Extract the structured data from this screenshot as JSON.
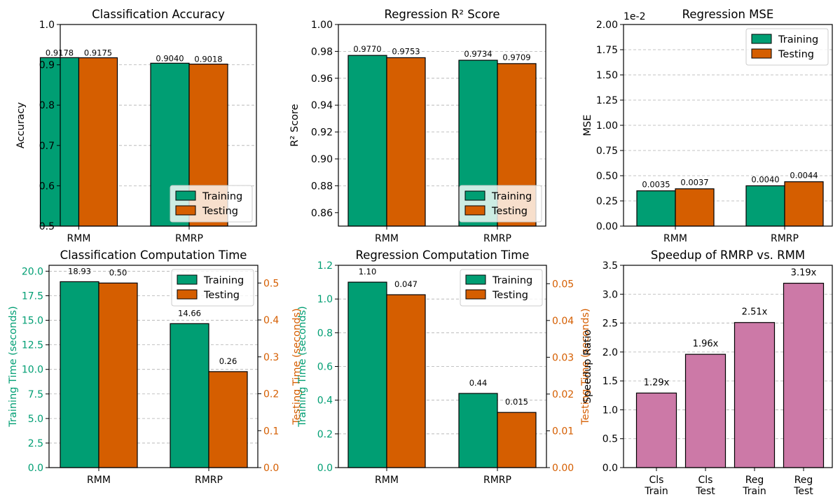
{
  "colors": {
    "training": "#009E73",
    "testing": "#D55E00",
    "speedup": "#CC79A7",
    "grid": "#b0b0b0"
  },
  "chart_data": [
    {
      "id": "cls-acc",
      "type": "bar",
      "title": "Classification Accuracy",
      "categories": [
        "RMM",
        "RMRP"
      ],
      "series": [
        {
          "name": "Training",
          "values": [
            0.9178,
            0.904
          ],
          "labels": [
            "0.9178",
            "0.9040"
          ]
        },
        {
          "name": "Testing",
          "values": [
            0.9175,
            0.9018
          ],
          "labels": [
            "0.9175",
            "0.9018"
          ]
        }
      ],
      "ylabel": "Accuracy",
      "ylim": [
        0.5,
        1.0
      ],
      "yticks": [
        0.5,
        0.6,
        0.7,
        0.8,
        0.9,
        1.0
      ],
      "ytick_labels": [
        "0.5",
        "0.6",
        "0.7",
        "0.8",
        "0.9",
        "1.0"
      ],
      "legend": "lower-right",
      "grid": "y"
    },
    {
      "id": "reg-r2",
      "type": "bar",
      "title": "Regression R² Score",
      "categories": [
        "RMM",
        "RMRP"
      ],
      "series": [
        {
          "name": "Training",
          "values": [
            0.977,
            0.9734
          ],
          "labels": [
            "0.9770",
            "0.9734"
          ]
        },
        {
          "name": "Testing",
          "values": [
            0.9753,
            0.9709
          ],
          "labels": [
            "0.9753",
            "0.9709"
          ]
        }
      ],
      "ylabel": "R² Score",
      "ylim": [
        0.85,
        1.0
      ],
      "yticks": [
        0.86,
        0.88,
        0.9,
        0.92,
        0.94,
        0.96,
        0.98,
        1.0
      ],
      "ytick_labels": [
        "0.86",
        "0.88",
        "0.90",
        "0.92",
        "0.94",
        "0.96",
        "0.98",
        "1.00"
      ],
      "legend": "lower-right",
      "grid": "y"
    },
    {
      "id": "reg-mse",
      "type": "bar",
      "title": "Regression MSE",
      "categories": [
        "RMM",
        "RMRP"
      ],
      "series": [
        {
          "name": "Training",
          "values": [
            0.35,
            0.4
          ],
          "labels": [
            "0.0035",
            "0.0040"
          ]
        },
        {
          "name": "Testing",
          "values": [
            0.37,
            0.44
          ],
          "labels": [
            "0.0037",
            "0.0044"
          ]
        }
      ],
      "ylabel": "MSE",
      "ylim": [
        0,
        2.0
      ],
      "offset_label": "1e-2",
      "yticks": [
        0,
        0.25,
        0.5,
        0.75,
        1.0,
        1.25,
        1.5,
        1.75,
        2.0
      ],
      "ytick_labels": [
        "0.00",
        "0.25",
        "0.50",
        "0.75",
        "1.00",
        "1.25",
        "1.50",
        "1.75",
        "2.00"
      ],
      "legend": "top-right",
      "grid": "y"
    },
    {
      "id": "cls-time",
      "type": "bar",
      "title": "Classification Computation Time",
      "categories": [
        "RMM",
        "RMRP"
      ],
      "series": [
        {
          "name": "Training",
          "values": [
            18.93,
            14.66
          ],
          "labels": [
            "18.93",
            "14.66"
          ],
          "axis": "left"
        },
        {
          "name": "Testing",
          "values": [
            0.5,
            0.26
          ],
          "labels": [
            "0.50",
            "0.26"
          ],
          "axis": "right"
        }
      ],
      "ylabel": "Training Time (seconds)",
      "ylim": [
        0,
        20.6
      ],
      "yticks": [
        0,
        2.5,
        5,
        7.5,
        10,
        12.5,
        15,
        17.5,
        20
      ],
      "ytick_labels": [
        "0.0",
        "2.5",
        "5.0",
        "7.5",
        "10.0",
        "12.5",
        "15.0",
        "17.5",
        "20.0"
      ],
      "y2label": "Testing Time (seconds)",
      "y2lim": [
        0,
        0.548
      ],
      "y2ticks": [
        0,
        0.1,
        0.2,
        0.3,
        0.4,
        0.5
      ],
      "y2tick_labels": [
        "0.0",
        "0.1",
        "0.2",
        "0.3",
        "0.4",
        "0.5"
      ],
      "legend": "top-right",
      "grid": "y"
    },
    {
      "id": "reg-time",
      "type": "bar",
      "title": "Regression Computation Time",
      "categories": [
        "RMM",
        "RMRP"
      ],
      "series": [
        {
          "name": "Training",
          "values": [
            1.1,
            0.44
          ],
          "labels": [
            "1.10",
            "0.44"
          ],
          "axis": "left"
        },
        {
          "name": "Testing",
          "values": [
            0.047,
            0.015
          ],
          "labels": [
            "0.047",
            "0.015"
          ],
          "axis": "right"
        }
      ],
      "ylabel": "Training Time (seconds)",
      "ylim": [
        0,
        1.2
      ],
      "yticks": [
        0,
        0.2,
        0.4,
        0.6,
        0.8,
        1.0,
        1.2
      ],
      "ytick_labels": [
        "0.0",
        "0.2",
        "0.4",
        "0.6",
        "0.8",
        "1.0",
        "1.2"
      ],
      "y2label": "Testing Time (seconds)",
      "y2lim": [
        0,
        0.055
      ],
      "y2ticks": [
        0,
        0.01,
        0.02,
        0.03,
        0.04,
        0.05
      ],
      "y2tick_labels": [
        "0.00",
        "0.01",
        "0.02",
        "0.03",
        "0.04",
        "0.05"
      ],
      "legend": "top-right",
      "grid": "y"
    },
    {
      "id": "speedup",
      "type": "bar",
      "title": "Speedup of RMRP vs. RMM",
      "categories": [
        "Cls\nTrain",
        "Cls\nTest",
        "Reg\nTrain",
        "Reg\nTest"
      ],
      "series": [
        {
          "name": "Speedup",
          "values": [
            1.29,
            1.96,
            2.51,
            3.19
          ],
          "labels": [
            "1.29x",
            "1.96x",
            "2.51x",
            "3.19x"
          ]
        }
      ],
      "ylabel": "Speedup Ratio",
      "ylim": [
        0,
        3.5
      ],
      "yticks": [
        0,
        0.5,
        1.0,
        1.5,
        2.0,
        2.5,
        3.0,
        3.5
      ],
      "ytick_labels": [
        "0.0",
        "0.5",
        "1.0",
        "1.5",
        "2.0",
        "2.5",
        "3.0",
        "3.5"
      ],
      "grid": "y"
    }
  ]
}
